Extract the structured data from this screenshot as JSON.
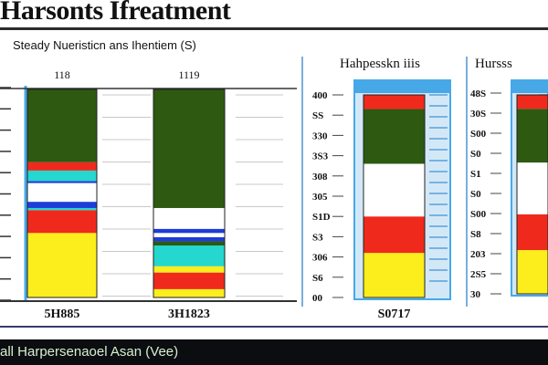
{
  "header": {
    "title": "Harsonts Ifreatment",
    "subtitle": "Steady Nueristicn ans Ihentiem (S)"
  },
  "footer": {
    "label": "all Harpersenaoel Asan (Vee)"
  },
  "colors": {
    "green": "#2d5a10",
    "red": "#ef2a1c",
    "cyan": "#24d7cf",
    "white": "#ffffff",
    "blue": "#1d3dd8",
    "yellow": "#fbee1c",
    "frame": "#47a8e8",
    "tick": "#5aa0dc"
  },
  "chart_data": [
    {
      "type": "bar",
      "stacked": true,
      "title": "",
      "ylim": [
        0,
        100
      ],
      "categories": [
        "118",
        "1119"
      ],
      "bottom_labels": [
        "5H885",
        "3H1823"
      ],
      "side_ticks": [
        "",
        "",
        "",
        "",
        "",
        "",
        "",
        "",
        "",
        "",
        ""
      ],
      "series": [
        {
          "color": "yellow",
          "values": [
            31,
            4
          ]
        },
        {
          "color": "red",
          "values": [
            11,
            8
          ]
        },
        {
          "color": "yellow",
          "values": [
            0,
            3
          ]
        },
        {
          "color": "cyan",
          "values": [
            1,
            10
          ]
        },
        {
          "color": "green",
          "values": [
            0,
            2
          ]
        },
        {
          "color": "blue",
          "values": [
            3,
            2
          ]
        },
        {
          "color": "white",
          "values": [
            9,
            2
          ]
        },
        {
          "color": "blue",
          "values": [
            1,
            2
          ]
        },
        {
          "color": "white",
          "values": [
            0,
            10
          ]
        },
        {
          "color": "cyan",
          "values": [
            5,
            0
          ]
        },
        {
          "color": "red",
          "values": [
            4,
            0
          ]
        },
        {
          "color": "green",
          "values": [
            35,
            57
          ]
        }
      ]
    },
    {
      "type": "bar",
      "stacked": true,
      "title": "Hahpesskn iiis",
      "ylim": [
        0,
        100
      ],
      "categories": [
        ""
      ],
      "bottom_labels": [
        "S0717"
      ],
      "y_ticks": [
        "00",
        "S6",
        "306",
        "S3",
        "S1D",
        "305",
        "308",
        "3S3",
        "330",
        "SS",
        "400"
      ],
      "series": [
        {
          "color": "yellow",
          "values": [
            22
          ]
        },
        {
          "color": "red",
          "values": [
            18
          ]
        },
        {
          "color": "white",
          "values": [
            26
          ]
        },
        {
          "color": "green",
          "values": [
            27
          ]
        },
        {
          "color": "red",
          "values": [
            7
          ]
        }
      ]
    },
    {
      "type": "bar",
      "stacked": true,
      "title": "Hursss",
      "ylim": [
        0,
        100
      ],
      "categories": [
        ""
      ],
      "bottom_labels": [
        ""
      ],
      "y_ticks": [
        "30",
        "2S5",
        "203",
        "S8",
        "S00",
        "S0",
        "S1",
        "S0",
        "S00",
        "30S",
        "48S"
      ],
      "series": [
        {
          "color": "yellow",
          "values": [
            22
          ]
        },
        {
          "color": "red",
          "values": [
            18
          ]
        },
        {
          "color": "white",
          "values": [
            26
          ]
        },
        {
          "color": "green",
          "values": [
            27
          ]
        },
        {
          "color": "red",
          "values": [
            7
          ]
        }
      ]
    }
  ]
}
